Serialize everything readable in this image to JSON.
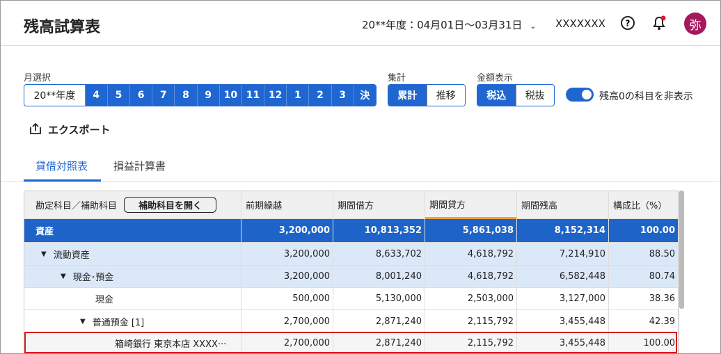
{
  "header": {
    "title": "残高試算表",
    "period": "20**年度：04月01日〜03月31日",
    "user": "XXXXXXX",
    "avatar": "弥"
  },
  "controls": {
    "month_label": "月選択",
    "months": [
      "20**年度",
      "4",
      "5",
      "6",
      "7",
      "8",
      "9",
      "10",
      "11",
      "12",
      "1",
      "2",
      "3",
      "決"
    ],
    "aggregate_label": "集計",
    "aggregate": [
      "累計",
      "推移"
    ],
    "amount_label": "金額表示",
    "amount": [
      "税込",
      "税抜"
    ],
    "toggle_label": "残高0の科目を非表示"
  },
  "export": "エクスポート",
  "tabs": [
    "貸借対照表",
    "損益計算書"
  ],
  "table": {
    "account_header": "勘定科目／補助科目",
    "open_button": "補助科目を開く",
    "columns": [
      "前期繰越",
      "期間借方",
      "期間貸方",
      "期間残高",
      "構成比（%）"
    ],
    "rows": [
      {
        "name": "資産",
        "cells": [
          "3,200,000",
          "10,813,352",
          "5,861,038",
          "8,152,314",
          "100.00"
        ]
      },
      {
        "name": "流動資産",
        "cells": [
          "3,200,000",
          "8,633,702",
          "4,618,792",
          "7,214,910",
          "88.50"
        ]
      },
      {
        "name": "現金･預金",
        "cells": [
          "3,200,000",
          "8,001,240",
          "4,618,792",
          "6,582,448",
          "80.74"
        ]
      },
      {
        "name": "現金",
        "cells": [
          "500,000",
          "5,130,000",
          "2,503,000",
          "3,127,000",
          "38.36"
        ]
      },
      {
        "name": "普通預金 [1]",
        "cells": [
          "2,700,000",
          "2,871,240",
          "2,115,792",
          "3,455,448",
          "42.39"
        ]
      },
      {
        "name": "箱崎銀行 東京本店 XXXX···",
        "cells": [
          "2,700,000",
          "2,871,240",
          "2,115,792",
          "3,455,448",
          "100.00"
        ]
      }
    ]
  }
}
